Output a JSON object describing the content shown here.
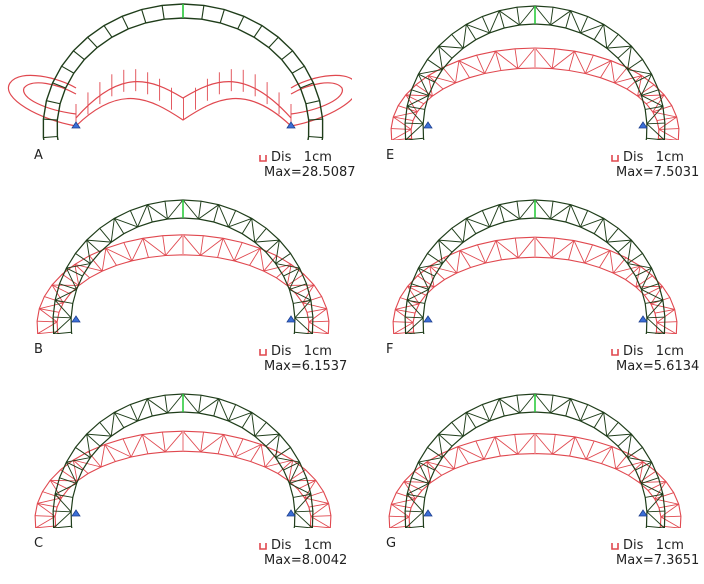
{
  "colors": {
    "original": "#1f3d1a",
    "original_highlight": "#2ecc40",
    "deformed": "#e0484f",
    "deformed_light": "#f0a0a4",
    "support": "#3b6fd8"
  },
  "panels": [
    {
      "label": "A",
      "legend_title": "Dis   1cm",
      "legend_max": "Max=28.5087",
      "mode": "frame"
    },
    {
      "label": "E",
      "legend_title": "Dis   1cm",
      "legend_max": "Max=7.5031",
      "mode": "truss"
    },
    {
      "label": "B",
      "legend_title": "Dis   1cm",
      "legend_max": "Max=6.1537",
      "mode": "truss"
    },
    {
      "label": "F",
      "legend_title": "Dis   1cm",
      "legend_max": "Max=5.6134",
      "mode": "truss"
    },
    {
      "label": "C",
      "legend_title": "Dis   1cm",
      "legend_max": "Max=8.0042",
      "mode": "truss"
    },
    {
      "label": "G",
      "legend_title": "Dis   1cm",
      "legend_max": "Max=7.3651",
      "mode": "truss"
    }
  ]
}
